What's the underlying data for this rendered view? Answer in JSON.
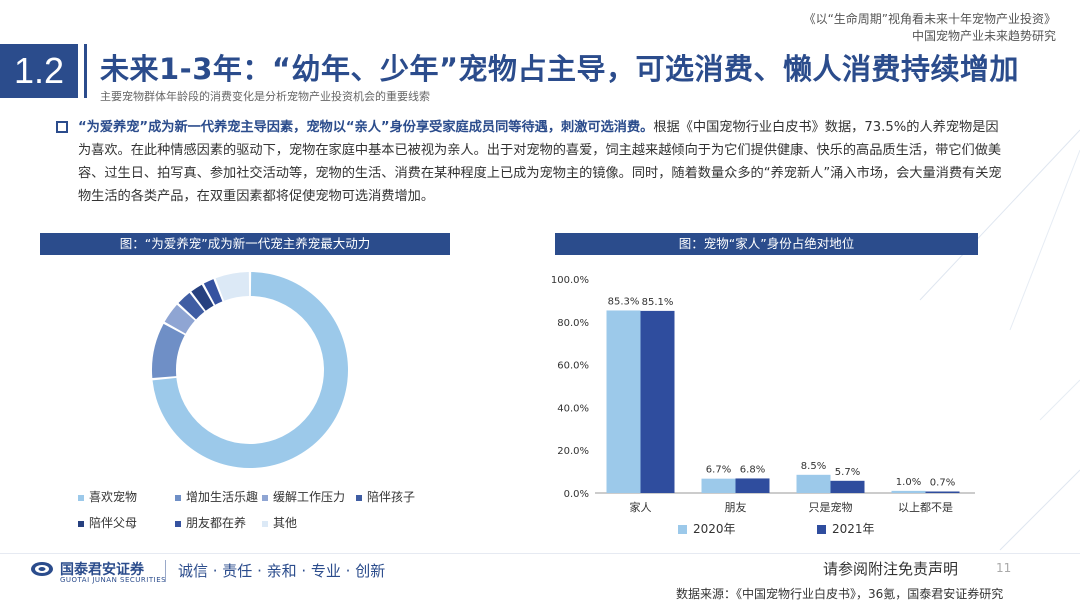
{
  "header": {
    "report_title": "《以“生命周期”视角看未来十年宠物产业投资》",
    "report_subtitle": "中国宠物产业未来趋势研究",
    "section_number": "1.2",
    "title": "未来1-3年：“幼年、少年”宠物占主导，可选消费、懒人消费持续增加",
    "subtitle": "主要宠物群体年龄段的消费变化是分析宠物产业投资机会的重要线索"
  },
  "body": {
    "highlight": "“为爱养宠”成为新一代养宠主导因素，宠物以“亲人”身份享受家庭成员同等待遇，刺激可选消费。",
    "text_1": "根据《中国宠物行业白皮书》数据，",
    "text_2": "73.5%的人养宠物是因为喜欢。在此种情感因素的驱动下，宠物在家庭中基本已被视为亲人。出于对宠物的喜爱，饲主越来越倾向于为它们提供健康、快乐的高品质生活，带它们做美容、过生日、拍写真、参加社交活动等，宠物的生活、消费在某种程度上已成为宠物主的镜像。同时，随着数量众多的“养宠新人”涌入市场，会大量消费有关宠物生活的各类产品，在双重因素都将促使宠物可选消费增加。"
  },
  "colors": {
    "primary": "#2b4c8c",
    "light_blue": "#9cc9ea",
    "mid_blue": "#6f8fc6",
    "dark_blue": "#2f4d9e"
  },
  "chart_data": [
    {
      "type": "pie",
      "title": "图：“为爱养宠”成为新一代宠主养宠最大动力",
      "categories": [
        "喜欢宠物",
        "增加生活乐趣",
        "缓解工作压力",
        "陪伴孩子",
        "陪伴父母",
        "朋友都在养",
        "其他"
      ],
      "values": [
        73.5,
        9.5,
        3.8,
        2.8,
        2.4,
        2.1,
        5.9
      ],
      "colors": [
        "#9cc9ea",
        "#6f8fc6",
        "#8fa5d3",
        "#3f5da3",
        "#26407f",
        "#3552a0",
        "#dce9f6"
      ],
      "legend_position": "bottom"
    },
    {
      "type": "bar",
      "title": "图：宠物“家人”身份占绝对地位",
      "categories": [
        "家人",
        "朋友",
        "只是宠物",
        "以上都不是"
      ],
      "series": [
        {
          "name": "2020年",
          "values": [
            85.3,
            6.7,
            8.5,
            1.0
          ],
          "color": "#9cc9ea"
        },
        {
          "name": "2021年",
          "values": [
            85.1,
            6.8,
            5.7,
            0.7
          ],
          "color": "#2f4d9e"
        }
      ],
      "data_labels": [
        [
          "85.3%",
          "6.7%",
          "8.5%",
          "1.0%"
        ],
        [
          "85.1%",
          "6.8%",
          "5.7%",
          "0.7%"
        ]
      ],
      "y_ticks": [
        "0.0%",
        "20.0%",
        "40.0%",
        "60.0%",
        "80.0%",
        "100.0%"
      ],
      "ylim": [
        0,
        100
      ],
      "grid": false,
      "legend_position": "bottom"
    }
  ],
  "footer": {
    "logo_cn": "国泰君安证券",
    "logo_en": "GUOTAI JUNAN SECURITIES",
    "slogan": "诚信 · 责任 · 亲和 · 专业 · 创新",
    "disclaimer": "请参阅附注免责声明",
    "page_number": "11",
    "source": "数据来源：《中国宠物行业白皮书》，36氪，国泰君安证券研究"
  }
}
